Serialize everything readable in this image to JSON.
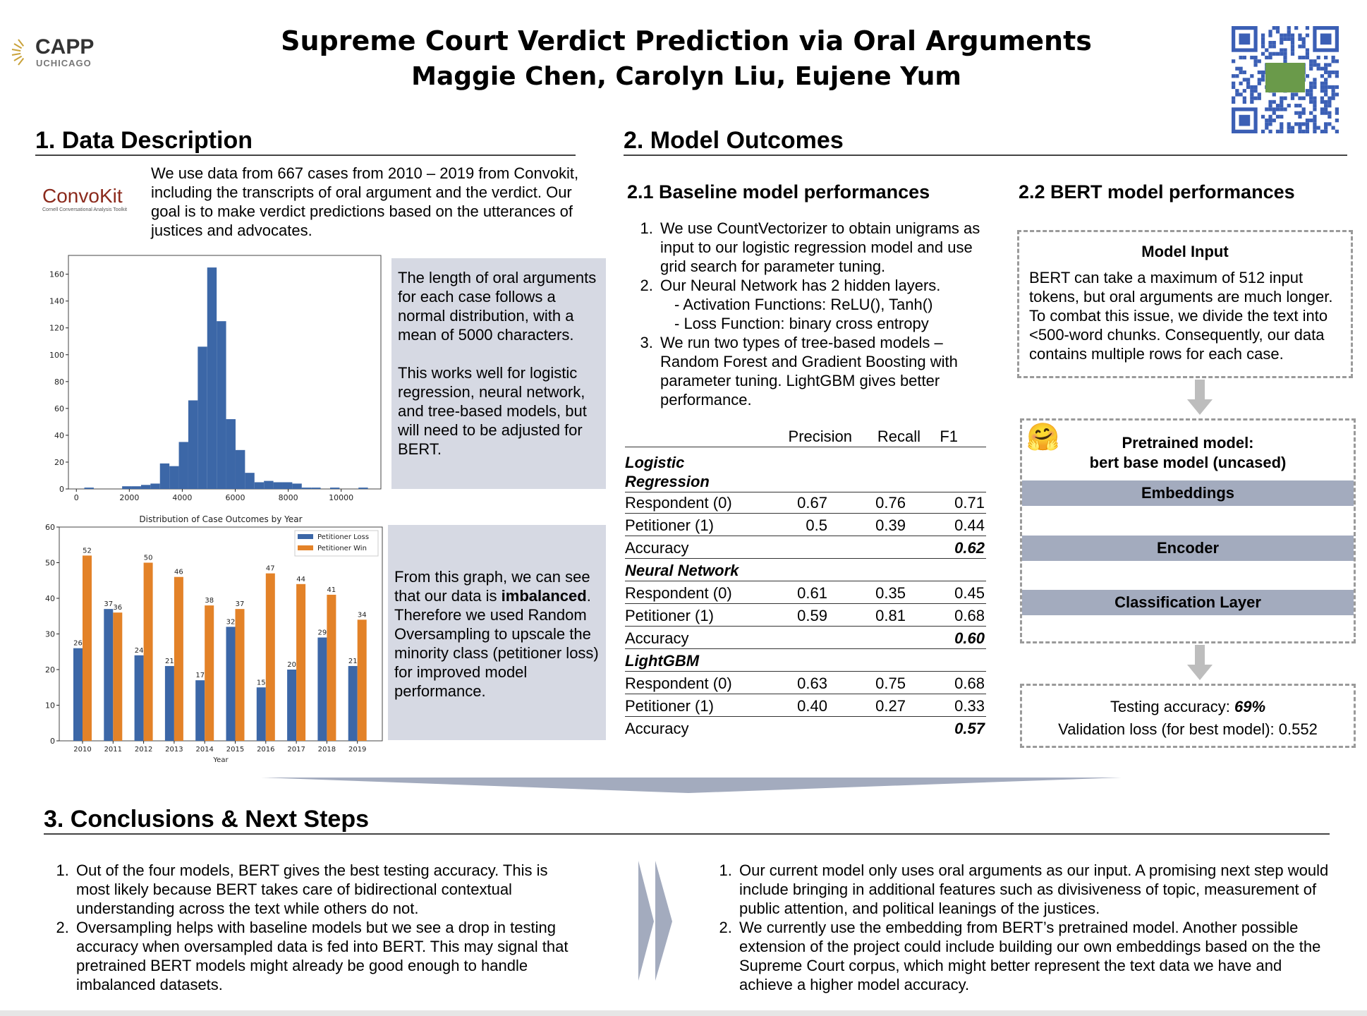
{
  "header": {
    "title": "Supreme Court Verdict Prediction via Oral Arguments",
    "authors": "Maggie Chen, Carolyn Liu, Eujene Yum",
    "logo_main": "CAPP",
    "logo_sub": "UCHICAGO"
  },
  "section1": {
    "heading": "1. Data Description",
    "convokit_logo": "ConvoKit",
    "convokit_tagline": "Cornell Conversational Analysis Toolkit",
    "intro": "We use data from 667 cases from 2010 – 2019 from Convokit, including the transcripts of oral argument and the verdict. Our goal is to make verdict predictions based on the utterances of justices and advocates.",
    "box1_p1": "The length of oral arguments for each case follows a normal distribution, with a mean of 5000 characters.",
    "box1_p2": "This works well for logistic regression, neural network, and tree-based models, but will need to be adjusted for BERT.",
    "box2_pre": "From this graph, we can see that our data is ",
    "box2_bold": "imbalanced",
    "box2_post": ". Therefore we used Random Oversampling to upscale the minority class (petitioner loss) for improved model performance."
  },
  "chart_data": [
    {
      "type": "bar",
      "subtype": "histogram",
      "title": "",
      "xlabel": "",
      "ylabel": "",
      "bin_start": 300,
      "bin_width": 357,
      "values": [
        1,
        0,
        0,
        0,
        2,
        2,
        3,
        4,
        19,
        17,
        35,
        66,
        106,
        165,
        125,
        52,
        29,
        12,
        5,
        6,
        5,
        5,
        4,
        1,
        1,
        0,
        1,
        0,
        0,
        1
      ],
      "xticks": [
        0,
        2000,
        4000,
        6000,
        8000,
        10000
      ],
      "yticks": [
        0,
        20,
        40,
        60,
        80,
        100,
        120,
        140,
        160
      ],
      "xlim": [
        -300,
        11500
      ],
      "ylim": [
        0,
        174
      ],
      "color": "#3c67a7"
    },
    {
      "type": "bar",
      "title": "Distribution of Case Outcomes by Year",
      "xlabel": "Year",
      "ylabel": "",
      "categories": [
        "2010",
        "2011",
        "2012",
        "2013",
        "2014",
        "2015",
        "2016",
        "2017",
        "2018",
        "2019"
      ],
      "series": [
        {
          "name": "Petitioner Loss",
          "color": "#3c67a7",
          "values": [
            26,
            37,
            24,
            21,
            17,
            32,
            15,
            20,
            29,
            21
          ]
        },
        {
          "name": "Petitioner Win",
          "color": "#e38228",
          "values": [
            52,
            36,
            50,
            46,
            38,
            37,
            47,
            44,
            41,
            34
          ]
        }
      ],
      "yticks": [
        0,
        10,
        20,
        30,
        40,
        50,
        60
      ],
      "ylim": [
        0,
        60
      ],
      "legend": "top-right"
    }
  ],
  "section2": {
    "heading": "2. Model Outcomes",
    "baseline": {
      "heading": "2.1 Baseline model performances",
      "items": [
        "We use CountVectorizer to obtain unigrams as input to our logistic regression model and use grid search for parameter tuning.",
        "Our Neural Network has 2 hidden layers.",
        "We run two types of tree-based models – Random Forest and Gradient Boosting with parameter tuning. LightGBM gives better performance."
      ],
      "nn_sub1": "- Activation Functions: ReLU(), Tanh()",
      "nn_sub2": "- Loss Function: binary cross entropy",
      "columns": [
        "Precision",
        "Recall",
        "F1"
      ],
      "models": [
        {
          "name": "Logistic Regression",
          "rows": [
            {
              "label": "Respondent (0)",
              "p": "0.67",
              "r": "0.76",
              "f": "0.71"
            },
            {
              "label": "Petitioner (1)",
              "p": "0.5",
              "r": "0.39",
              "f": "0.44"
            }
          ],
          "acc_label": "Accuracy",
          "acc": "0.62"
        },
        {
          "name": "Neural Network",
          "rows": [
            {
              "label": "Respondent (0)",
              "p": "0.61",
              "r": "0.35",
              "f": "0.45"
            },
            {
              "label": "Petitioner (1)",
              "p": "0.59",
              "r": "0.81",
              "f": "0.68"
            }
          ],
          "acc_label": "Accuracy",
          "acc": "0.60"
        },
        {
          "name": "LightGBM",
          "rows": [
            {
              "label": "Respondent (0)",
              "p": "0.63",
              "r": "0.75",
              "f": "0.68"
            },
            {
              "label": "Petitioner (1)",
              "p": "0.40",
              "r": "0.27",
              "f": "0.33"
            }
          ],
          "acc_label": "Accuracy",
          "acc": "0.57"
        }
      ]
    },
    "bert": {
      "heading": "2.2 BERT model performances",
      "input_title": "Model Input",
      "input_text": "BERT can take a maximum of 512 input tokens, but oral arguments are much longer. To combat this issue, we divide the text into <500-word chunks. Consequently, our data contains multiple rows for each case.",
      "pretrained_l1": "Pretrained model:",
      "pretrained_l2": "bert base model (uncased)",
      "layers": [
        "Embeddings",
        "Encoder",
        "Classification Layer"
      ],
      "testing_label": "Testing accuracy: ",
      "testing_value": "69%",
      "val_loss": "Validation loss (for best model): 0.552"
    }
  },
  "section3": {
    "heading": "3. Conclusions & Next Steps",
    "left": [
      "Out of the four models, BERT gives the best testing accuracy. This is most likely because BERT takes care of bidirectional contextual understanding across the text while others do not.",
      "Oversampling helps with baseline models but we see a drop in testing accuracy when oversampled data is fed into BERT. This may signal that pretrained BERT models might already be good enough to handle imbalanced datasets."
    ],
    "right": [
      "Our current model only uses oral arguments as our input. A promising next step would include bringing in additional features such as divisiveness of topic, measurement of public attention, and political leanings of the justices.",
      "We currently use the embedding from BERT’s pretrained model. Another possible extension of the project could include building our own embeddings based on the the Supreme Court corpus, which might better represent the text data we have and achieve a higher model accuracy."
    ]
  }
}
